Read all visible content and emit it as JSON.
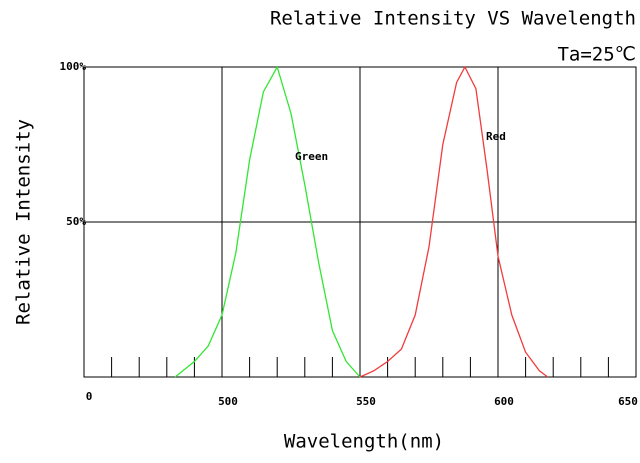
{
  "chart_data": {
    "type": "line",
    "title": "Relative Intensity VS Wavelength",
    "subtitle": "Ta=25℃",
    "x_label": "Wavelength(nm)",
    "y_label": "Relative Intensity",
    "xlim": [
      450,
      650
    ],
    "ylim": [
      0,
      100
    ],
    "xticks": [
      {
        "value": 450,
        "label": "0"
      },
      500,
      550,
      600,
      650
    ],
    "xminorticks": [
      460,
      470,
      480,
      490,
      510,
      520,
      530,
      540,
      560,
      570,
      580,
      590,
      610,
      620,
      630,
      640
    ],
    "yticks": [
      {
        "value": 50,
        "label": "50%"
      },
      {
        "value": 100,
        "label": "100%"
      }
    ],
    "grid": true,
    "series": [
      {
        "name": "Green",
        "color": "#33e633",
        "x": [
          483,
          490,
          495,
          500,
          505,
          510,
          515,
          520,
          525,
          530,
          535,
          540,
          545,
          550
        ],
        "values": [
          0,
          5,
          10,
          20,
          40,
          70,
          92,
          100,
          85,
          62,
          37,
          15,
          5,
          0
        ]
      },
      {
        "name": "Red",
        "color": "#f03c3c",
        "x": [
          550,
          555,
          560,
          565,
          570,
          575,
          580,
          585,
          588,
          592,
          596,
          600,
          605,
          610,
          615,
          618
        ],
        "values": [
          0,
          2,
          5,
          9,
          20,
          42,
          75,
          95,
          100,
          93,
          67,
          39,
          20,
          8,
          2,
          0
        ]
      }
    ]
  }
}
